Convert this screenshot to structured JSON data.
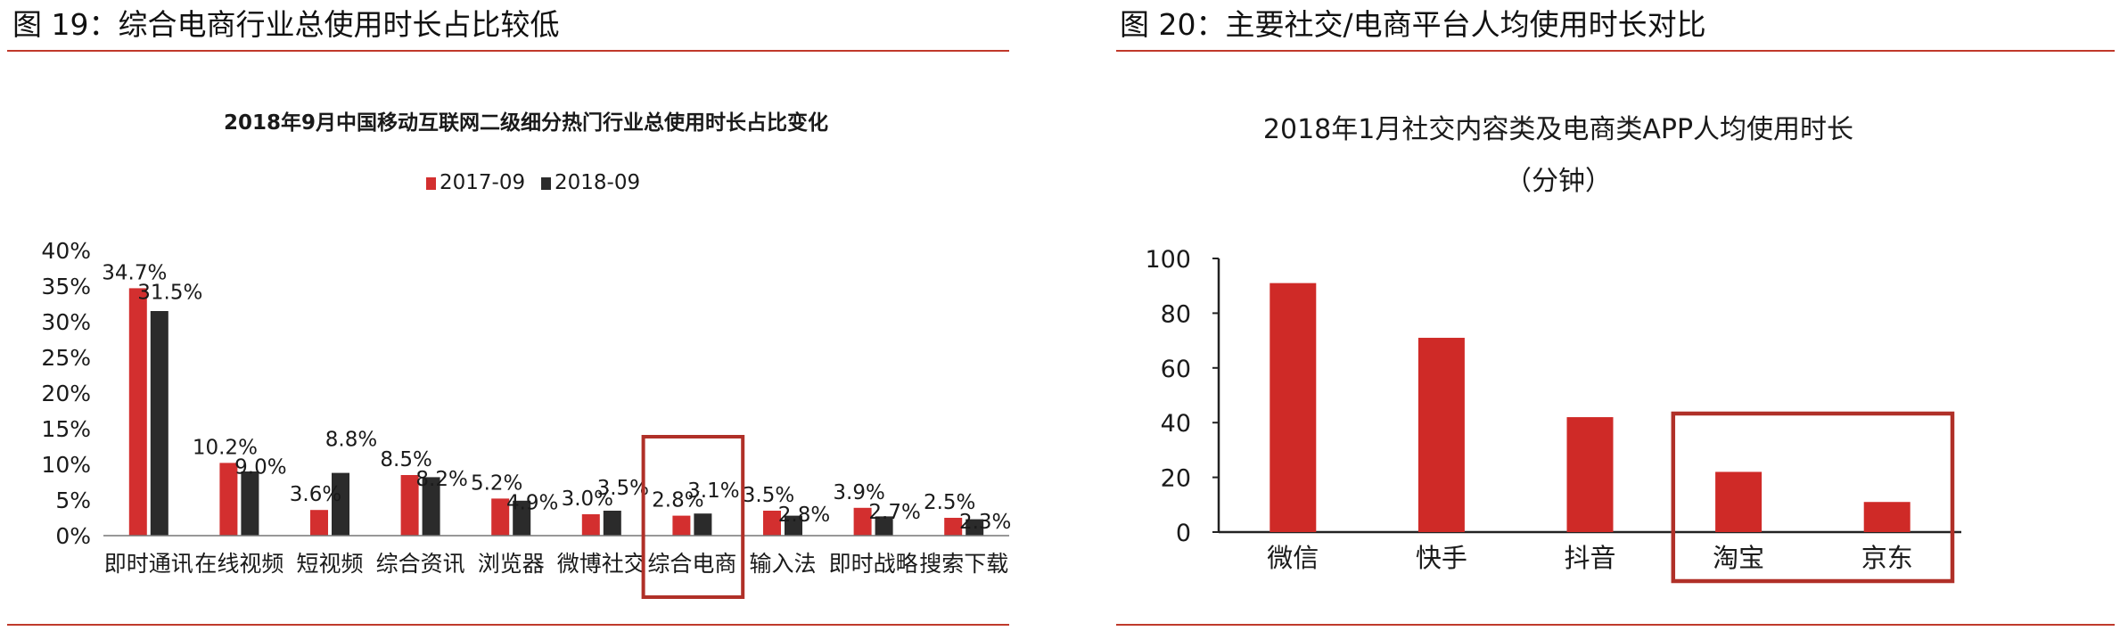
{
  "figures": {
    "left_caption": "图 19：综合电商行业总使用时长占比较低",
    "right_caption": "图 20：主要社交/电商平台人均使用时长对比"
  },
  "colors": {
    "accent_rule": "#c0392b",
    "series_2017": "#d32f2f",
    "series_2018": "#2b2b2b",
    "bar_right": "#cf2a27",
    "highlight_box": "#b03028"
  },
  "chart_data": [
    {
      "type": "bar",
      "title": "2018年9月中国移动互联网二级细分热门行业总使用时长占比变化",
      "categories": [
        "即时通讯",
        "在线视频",
        "短视频",
        "综合资讯",
        "浏览器",
        "微博社交",
        "综合电商",
        "输入法",
        "即时战略",
        "搜索下载"
      ],
      "series": [
        {
          "name": "2017-09",
          "values": [
            34.7,
            10.2,
            3.6,
            8.5,
            5.2,
            3.0,
            2.8,
            3.5,
            3.9,
            2.5
          ],
          "labels": [
            "34.7%",
            "10.2%",
            "3.6%",
            "8.5%",
            "5.2%",
            "3.0%",
            "2.8%",
            "3.5%",
            "3.9%",
            "2.5%"
          ]
        },
        {
          "name": "2018-09",
          "values": [
            31.5,
            9.0,
            8.8,
            8.2,
            4.9,
            3.5,
            3.1,
            2.8,
            2.7,
            2.3
          ],
          "labels": [
            "31.5%",
            "9.0%",
            "8.8%",
            "8.2%",
            "4.9%",
            "3.5%",
            "3.1%",
            "2.8%",
            "2.7%",
            "2.3%"
          ]
        }
      ],
      "y_ticks": [
        "0%",
        "5%",
        "10%",
        "15%",
        "20%",
        "25%",
        "30%",
        "35%",
        "40%"
      ],
      "ylim": [
        0,
        40
      ],
      "xlabel": "",
      "ylabel": "",
      "legend_position": "top",
      "highlight_category": "综合电商",
      "grid": false
    },
    {
      "type": "bar",
      "title": "2018年1月社交内容类及电商类APP人均使用时长",
      "subtitle": "（分钟）",
      "categories": [
        "微信",
        "快手",
        "抖音",
        "淘宝",
        "京东"
      ],
      "values": [
        91,
        71,
        42,
        22,
        11
      ],
      "y_ticks": [
        "0",
        "20",
        "40",
        "60",
        "80",
        "100"
      ],
      "ylim": [
        0,
        100
      ],
      "xlabel": "",
      "ylabel": "",
      "highlight_categories": [
        "淘宝",
        "京东"
      ],
      "grid": false
    }
  ]
}
